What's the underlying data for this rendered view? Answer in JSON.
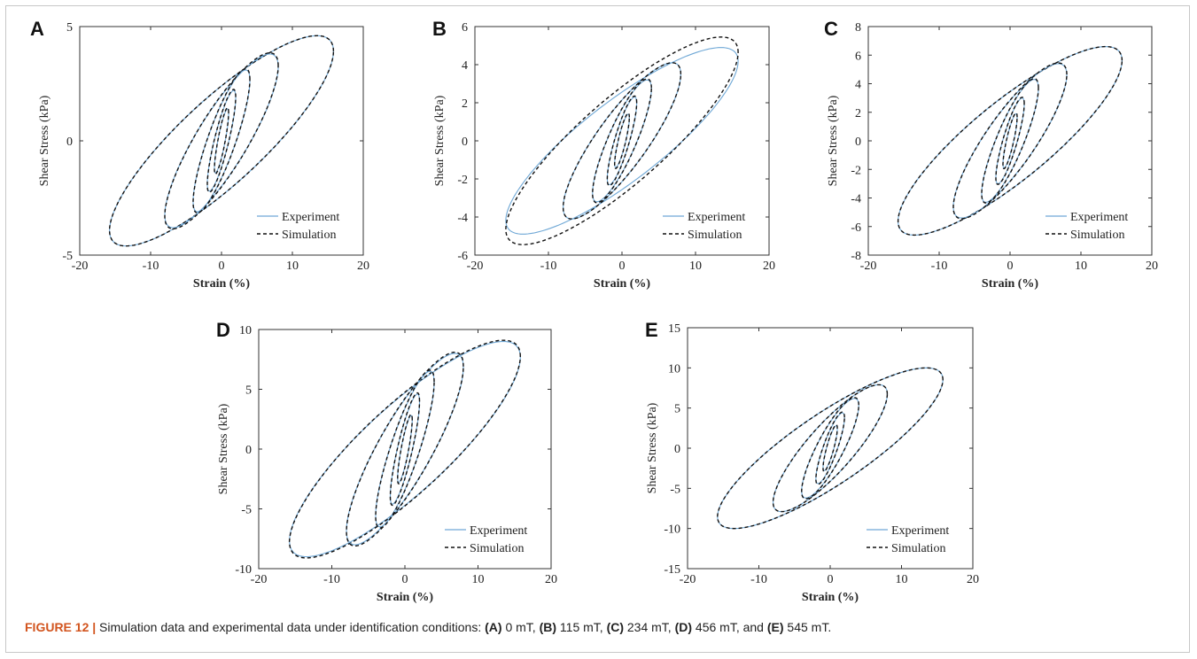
{
  "colors": {
    "experiment": "#6fa8d6",
    "simulation": "#111111",
    "caption_label": "#d2541e"
  },
  "caption": {
    "label": "FIGURE 12 |",
    "text": " Simulation data and experimental data under identification conditions: ",
    "parts": [
      {
        "letter": "(A)",
        "value": " 0 mT, "
      },
      {
        "letter": "(B)",
        "value": " 115 mT, "
      },
      {
        "letter": "(C)",
        "value": " 234 mT, "
      },
      {
        "letter": "(D)",
        "value": " 456 mT, and "
      },
      {
        "letter": "(E)",
        "value": " 545 mT."
      }
    ]
  },
  "chart_data": [
    {
      "panel": "A",
      "type": "line",
      "xlabel": "Strain (%)",
      "ylabel": "Shear Stress (kPa)",
      "xlim": [
        -20,
        20
      ],
      "ylim": [
        -5,
        5
      ],
      "xticks": [
        -20,
        -10,
        0,
        10,
        20
      ],
      "yticks": [
        -5,
        0,
        5
      ],
      "legend": "bottom-right",
      "loops": [
        {
          "amplitude": 15.8,
          "peak_stress": 4.6,
          "sim_peak": 4.6
        },
        {
          "amplitude": 8.0,
          "peak_stress": 3.8,
          "sim_peak": 3.85
        },
        {
          "amplitude": 4.0,
          "peak_stress": 3.1,
          "sim_peak": 3.15
        },
        {
          "amplitude": 2.0,
          "peak_stress": 2.2,
          "sim_peak": 2.25
        },
        {
          "amplitude": 1.0,
          "peak_stress": 1.4,
          "sim_peak": 1.45
        }
      ],
      "series": [
        {
          "name": "Experiment"
        },
        {
          "name": "Simulation"
        }
      ]
    },
    {
      "panel": "B",
      "type": "line",
      "xlabel": "Strain (%)",
      "ylabel": "Shear Stress (kPa)",
      "xlim": [
        -20,
        20
      ],
      "ylim": [
        -6,
        6
      ],
      "xticks": [
        -20,
        -10,
        0,
        10,
        20
      ],
      "yticks": [
        -6,
        -4,
        -2,
        0,
        2,
        4,
        6
      ],
      "legend": "bottom-right",
      "loops": [
        {
          "amplitude": 15.8,
          "peak_stress": 4.9,
          "sim_peak": 5.45
        },
        {
          "amplitude": 8.0,
          "peak_stress": 4.1,
          "sim_peak": 4.1
        },
        {
          "amplitude": 4.0,
          "peak_stress": 3.2,
          "sim_peak": 3.25
        },
        {
          "amplitude": 2.0,
          "peak_stress": 2.3,
          "sim_peak": 2.35
        },
        {
          "amplitude": 1.0,
          "peak_stress": 1.4,
          "sim_peak": 1.45
        }
      ],
      "series": [
        {
          "name": "Experiment"
        },
        {
          "name": "Simulation"
        }
      ]
    },
    {
      "panel": "C",
      "type": "line",
      "xlabel": "Strain (%)",
      "ylabel": "Shear Stress (kPa)",
      "xlim": [
        -20,
        20
      ],
      "ylim": [
        -8,
        8
      ],
      "xticks": [
        -20,
        -10,
        0,
        10,
        20
      ],
      "yticks": [
        -8,
        -6,
        -4,
        -2,
        0,
        2,
        4,
        6,
        8
      ],
      "legend": "bottom-right",
      "loops": [
        {
          "amplitude": 15.8,
          "peak_stress": 6.6,
          "sim_peak": 6.6
        },
        {
          "amplitude": 8.0,
          "peak_stress": 5.4,
          "sim_peak": 5.45
        },
        {
          "amplitude": 4.0,
          "peak_stress": 4.3,
          "sim_peak": 4.35
        },
        {
          "amplitude": 2.0,
          "peak_stress": 3.0,
          "sim_peak": 3.05
        },
        {
          "amplitude": 1.0,
          "peak_stress": 1.9,
          "sim_peak": 1.95
        }
      ],
      "series": [
        {
          "name": "Experiment"
        },
        {
          "name": "Simulation"
        }
      ]
    },
    {
      "panel": "D",
      "type": "line",
      "xlabel": "Strain (%)",
      "ylabel": "Shear Stress (kPa)",
      "xlim": [
        -20,
        20
      ],
      "ylim": [
        -10,
        10
      ],
      "xticks": [
        -20,
        -10,
        0,
        10,
        20
      ],
      "yticks": [
        -10,
        -5,
        0,
        5,
        10
      ],
      "legend": "bottom-right",
      "loops": [
        {
          "amplitude": 15.8,
          "peak_stress": 9.0,
          "sim_peak": 9.1
        },
        {
          "amplitude": 8.0,
          "peak_stress": 8.0,
          "sim_peak": 8.1
        },
        {
          "amplitude": 4.0,
          "peak_stress": 6.5,
          "sim_peak": 6.6
        },
        {
          "amplitude": 2.0,
          "peak_stress": 4.6,
          "sim_peak": 4.7
        },
        {
          "amplitude": 1.0,
          "peak_stress": 2.8,
          "sim_peak": 2.9
        }
      ],
      "series": [
        {
          "name": "Experiment"
        },
        {
          "name": "Simulation"
        }
      ]
    },
    {
      "panel": "E",
      "type": "line",
      "xlabel": "Strain (%)",
      "ylabel": "Shear Stress (kPa)",
      "xlim": [
        -20,
        20
      ],
      "ylim": [
        -15,
        15
      ],
      "xticks": [
        -20,
        -10,
        0,
        10,
        20
      ],
      "yticks": [
        -15,
        -10,
        -5,
        0,
        5,
        10,
        15
      ],
      "legend": "bottom-right",
      "loops": [
        {
          "amplitude": 15.8,
          "peak_stress": 10.0,
          "sim_peak": 10.0
        },
        {
          "amplitude": 8.0,
          "peak_stress": 7.9,
          "sim_peak": 7.9
        },
        {
          "amplitude": 4.0,
          "peak_stress": 6.2,
          "sim_peak": 6.3
        },
        {
          "amplitude": 2.0,
          "peak_stress": 4.4,
          "sim_peak": 4.5
        },
        {
          "amplitude": 1.0,
          "peak_stress": 2.8,
          "sim_peak": 2.9
        }
      ],
      "series": [
        {
          "name": "Experiment"
        },
        {
          "name": "Simulation"
        }
      ]
    }
  ]
}
